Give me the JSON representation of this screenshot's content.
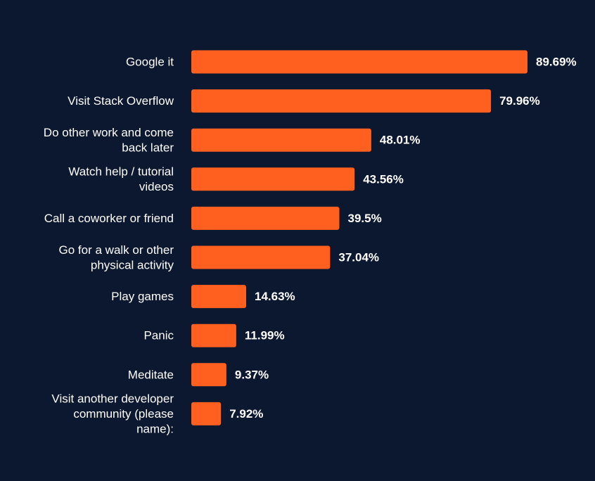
{
  "colors": {
    "background": "#0c1730",
    "bar": "#ff5f1f",
    "text": "#ffffff"
  },
  "chart_data": {
    "type": "bar",
    "orientation": "horizontal",
    "categories": [
      "Google it",
      "Visit Stack Overflow",
      "Do other work and come back later",
      "Watch help / tutorial videos",
      "Call a coworker or friend",
      "Go for a walk or other physical activity",
      "Play games",
      "Panic",
      "Meditate",
      "Visit another developer community (please name):"
    ],
    "category_lines": [
      [
        "Google it"
      ],
      [
        "Visit Stack Overflow"
      ],
      [
        "Do other work and come",
        "back later"
      ],
      [
        "Watch help / tutorial",
        "videos"
      ],
      [
        "Call a coworker or friend"
      ],
      [
        "Go for a walk or other",
        "physical activity"
      ],
      [
        "Play games"
      ],
      [
        "Panic"
      ],
      [
        "Meditate"
      ],
      [
        "Visit another developer",
        "community (please",
        "name):"
      ]
    ],
    "values": [
      89.69,
      79.96,
      48.01,
      43.56,
      39.5,
      37.04,
      14.63,
      11.99,
      9.37,
      7.92
    ],
    "value_labels": [
      "89.69%",
      "79.96%",
      "48.01%",
      "43.56%",
      "39.5%",
      "37.04%",
      "14.63%",
      "11.99%",
      "9.37%",
      "7.92%"
    ],
    "xlim": [
      0,
      100
    ],
    "grid": false,
    "legend": "none"
  }
}
